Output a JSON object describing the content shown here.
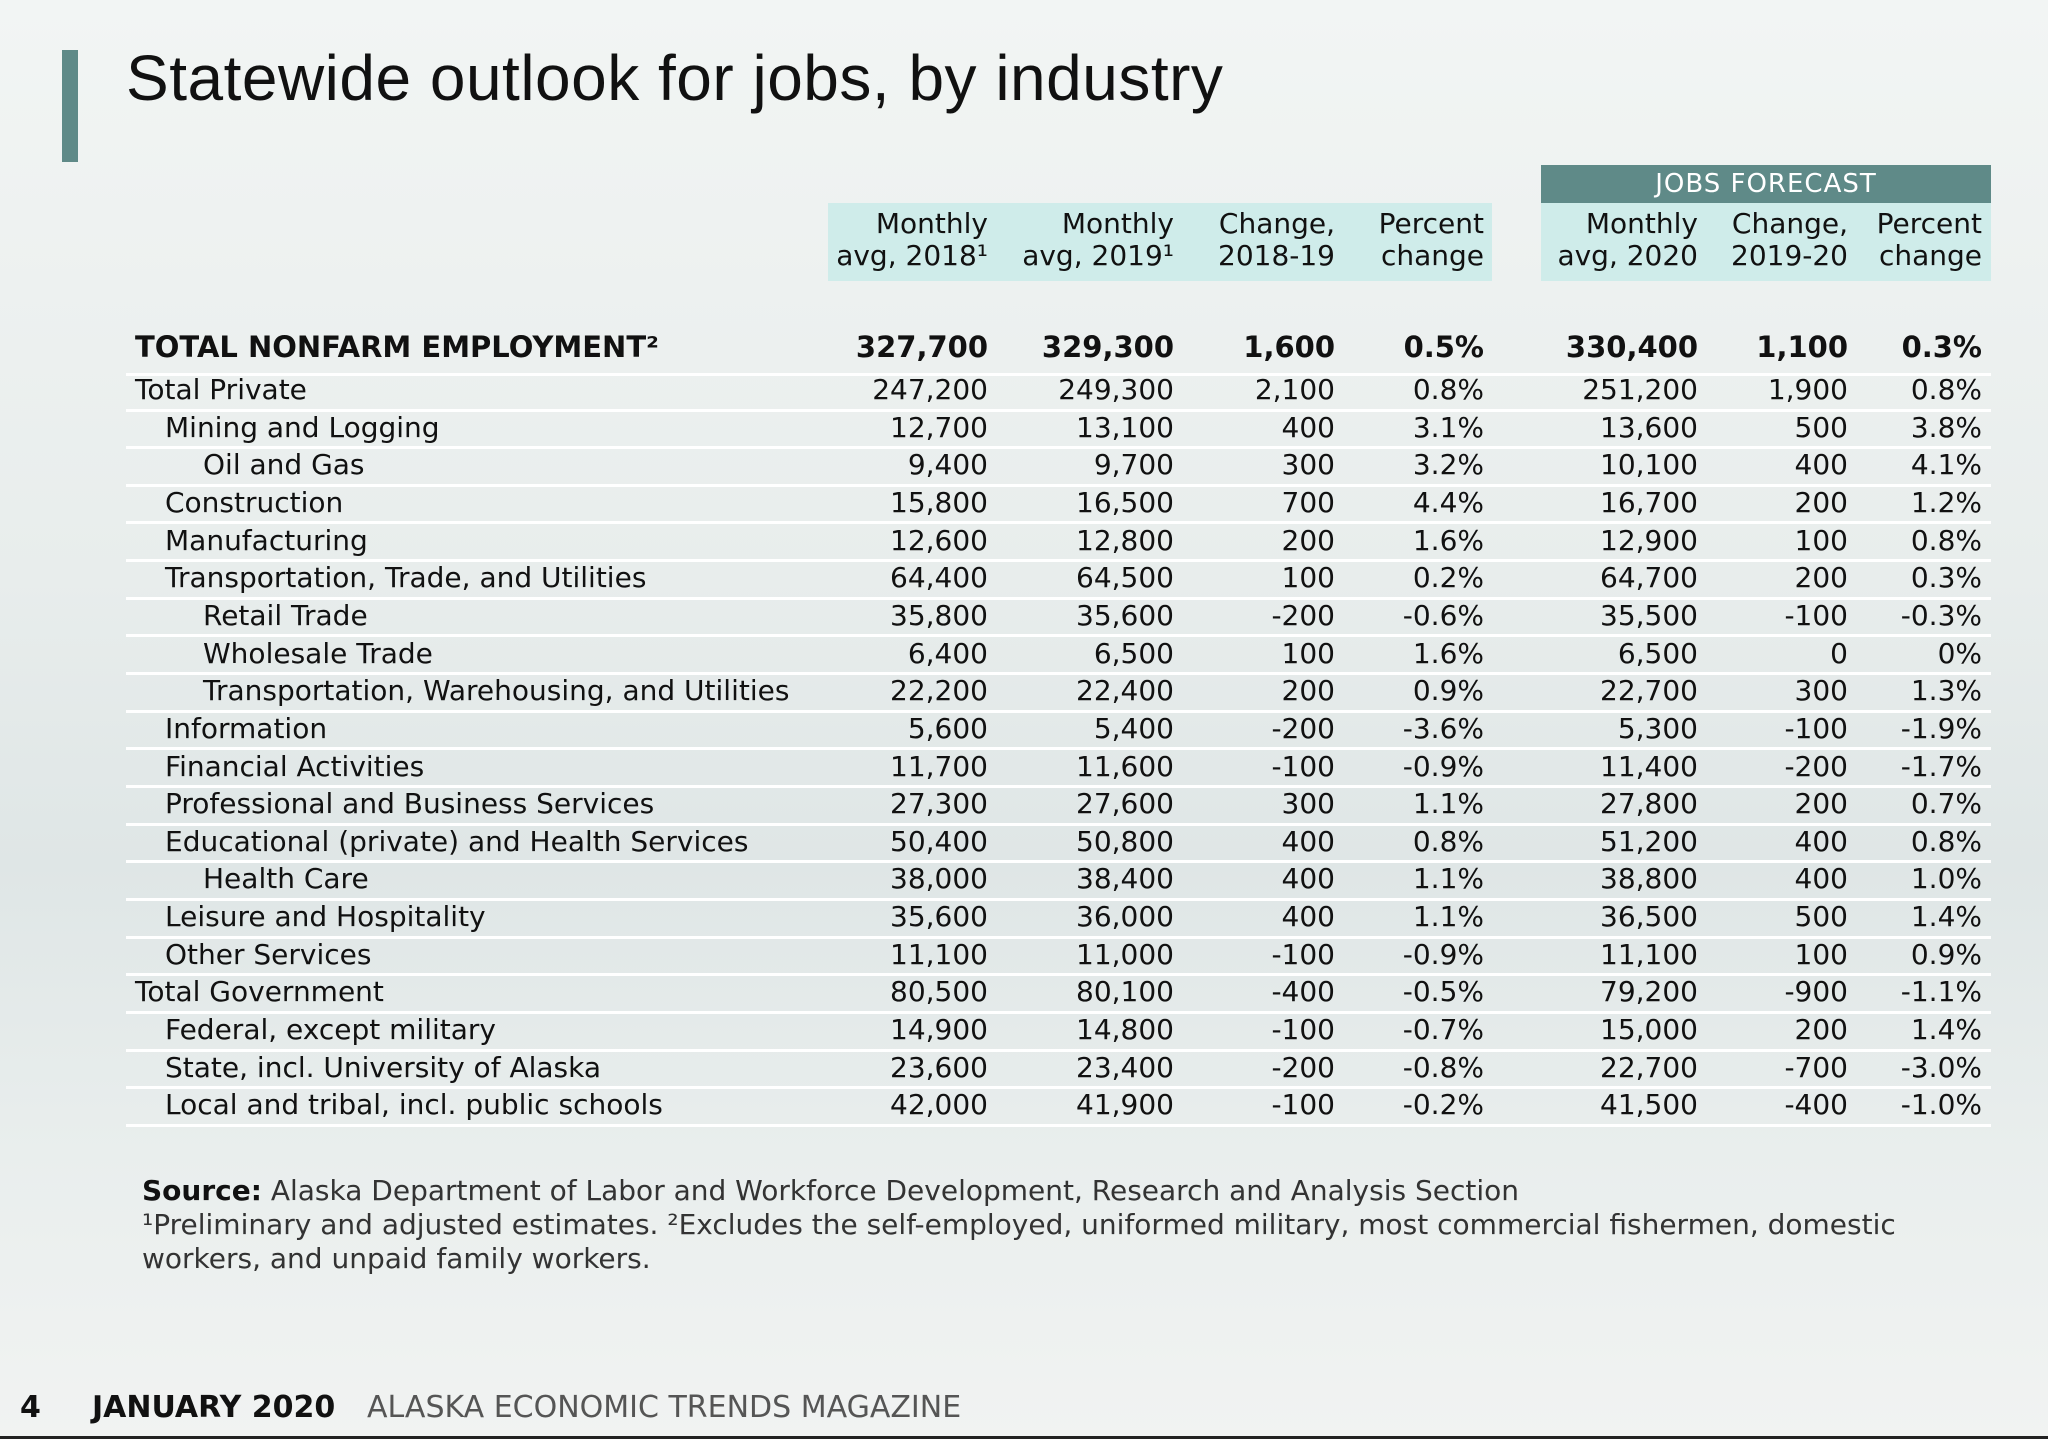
{
  "title": "Statewide outlook for jobs, by industry",
  "forecast_label": "JOBS FORECAST",
  "columns": [
    {
      "line1": "Monthly",
      "line2": "avg, 2018¹"
    },
    {
      "line1": "Monthly",
      "line2": "avg, 2019¹"
    },
    {
      "line1": "Change,",
      "line2": "2018-19"
    },
    {
      "line1": "Percent",
      "line2": "change"
    },
    {
      "line1": "Monthly",
      "line2": "avg, 2020"
    },
    {
      "line1": "Change,",
      "line2": "2019-20"
    },
    {
      "line1": "Percent",
      "line2": "change"
    }
  ],
  "rows": [
    {
      "label": "TOTAL NONFARM EMPLOYMENT²",
      "indent": 0,
      "total": true,
      "values": [
        "327,700",
        "329,300",
        "1,600",
        "0.5%",
        "330,400",
        "1,100",
        "0.3%"
      ]
    },
    {
      "label": "Total Private",
      "indent": 0,
      "values": [
        "247,200",
        "249,300",
        "2,100",
        "0.8%",
        "251,200",
        "1,900",
        "0.8%"
      ]
    },
    {
      "label": "Mining and Logging",
      "indent": 1,
      "values": [
        "12,700",
        "13,100",
        "400",
        "3.1%",
        "13,600",
        "500",
        "3.8%"
      ]
    },
    {
      "label": "Oil and Gas",
      "indent": 2,
      "values": [
        "9,400",
        "9,700",
        "300",
        "3.2%",
        "10,100",
        "400",
        "4.1%"
      ]
    },
    {
      "label": "Construction",
      "indent": 1,
      "values": [
        "15,800",
        "16,500",
        "700",
        "4.4%",
        "16,700",
        "200",
        "1.2%"
      ]
    },
    {
      "label": "Manufacturing",
      "indent": 1,
      "values": [
        "12,600",
        "12,800",
        "200",
        "1.6%",
        "12,900",
        "100",
        "0.8%"
      ]
    },
    {
      "label": "Transportation, Trade, and Utilities",
      "indent": 1,
      "values": [
        "64,400",
        "64,500",
        "100",
        "0.2%",
        "64,700",
        "200",
        "0.3%"
      ]
    },
    {
      "label": "Retail Trade",
      "indent": 2,
      "values": [
        "35,800",
        "35,600",
        "-200",
        "-0.6%",
        "35,500",
        "-100",
        "-0.3%"
      ]
    },
    {
      "label": "Wholesale Trade",
      "indent": 2,
      "values": [
        "6,400",
        "6,500",
        "100",
        "1.6%",
        "6,500",
        "0",
        "0%"
      ]
    },
    {
      "label": "Transportation, Warehousing, and Utilities",
      "indent": 2,
      "values": [
        "22,200",
        "22,400",
        "200",
        "0.9%",
        "22,700",
        "300",
        "1.3%"
      ]
    },
    {
      "label": "Information",
      "indent": 1,
      "values": [
        "5,600",
        "5,400",
        "-200",
        "-3.6%",
        "5,300",
        "-100",
        "-1.9%"
      ]
    },
    {
      "label": "Financial Activities",
      "indent": 1,
      "values": [
        "11,700",
        "11,600",
        "-100",
        "-0.9%",
        "11,400",
        "-200",
        "-1.7%"
      ]
    },
    {
      "label": "Professional and Business Services",
      "indent": 1,
      "values": [
        "27,300",
        "27,600",
        "300",
        "1.1%",
        "27,800",
        "200",
        "0.7%"
      ]
    },
    {
      "label": "Educational (private) and Health Services",
      "indent": 1,
      "values": [
        "50,400",
        "50,800",
        "400",
        "0.8%",
        "51,200",
        "400",
        "0.8%"
      ]
    },
    {
      "label": "Health Care",
      "indent": 2,
      "values": [
        "38,000",
        "38,400",
        "400",
        "1.1%",
        "38,800",
        "400",
        "1.0%"
      ]
    },
    {
      "label": "Leisure and Hospitality",
      "indent": 1,
      "values": [
        "35,600",
        "36,000",
        "400",
        "1.1%",
        "36,500",
        "500",
        "1.4%"
      ]
    },
    {
      "label": "Other Services",
      "indent": 1,
      "values": [
        "11,100",
        "11,000",
        "-100",
        "-0.9%",
        "11,100",
        "100",
        "0.9%"
      ]
    },
    {
      "label": "Total Government",
      "indent": 0,
      "values": [
        "80,500",
        "80,100",
        "-400",
        "-0.5%",
        "79,200",
        "-900",
        "-1.1%"
      ]
    },
    {
      "label": "Federal, except military",
      "indent": 1,
      "values": [
        "14,900",
        "14,800",
        "-100",
        "-0.7%",
        "15,000",
        "200",
        "1.4%"
      ]
    },
    {
      "label": "State, incl. University of Alaska",
      "indent": 1,
      "values": [
        "23,600",
        "23,400",
        "-200",
        "-0.8%",
        "22,700",
        "-700",
        "-3.0%"
      ]
    },
    {
      "label": "Local and tribal, incl. public schools",
      "indent": 1,
      "values": [
        "42,000",
        "41,900",
        "-100",
        "-0.2%",
        "41,500",
        "-400",
        "-1.0%"
      ]
    }
  ],
  "notes": {
    "source_label": "Source:",
    "source_text": "Alaska Department of Labor and Workforce Development, Research and Analysis Section",
    "footnote": "¹Preliminary and adjusted estimates. ²Excludes the self-employed, uniformed military, most commercial fishermen, domestic workers, and unpaid family workers."
  },
  "footer": {
    "page_number": "4",
    "date": "JANUARY 2020",
    "magazine": "ALASKA ECONOMIC TRENDS MAGAZINE"
  }
}
